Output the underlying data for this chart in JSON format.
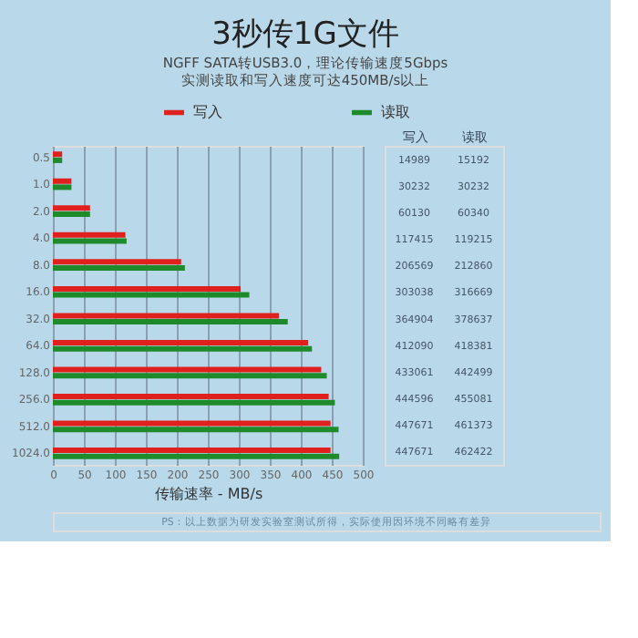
{
  "chart_data": {
    "type": "bar",
    "orientation": "horizontal",
    "title": "3秒传1G文件",
    "subtitle": "NGFF SATA转USB3.0，理论传输速度5Gbps\n实测读取和写入速度可达450MB/s以上",
    "categories": [
      "0.5",
      "1.0",
      "2.0",
      "4.0",
      "8.0",
      "16.0",
      "32.0",
      "64.0",
      "128.0",
      "256.0",
      "512.0",
      "1024.0"
    ],
    "series": [
      {
        "name": "写入",
        "color": "#e0201c",
        "values": [
          15,
          30,
          60,
          117,
          207,
          303,
          365,
          412,
          433,
          445,
          448,
          448
        ]
      },
      {
        "name": "读取",
        "color": "#1e8a2a",
        "values": [
          15,
          30,
          60,
          119,
          213,
          317,
          379,
          418,
          442,
          455,
          461,
          462
        ]
      }
    ],
    "xlim": [
      0,
      500
    ],
    "xticks": [
      0,
      50,
      100,
      150,
      200,
      250,
      300,
      350,
      400,
      450,
      500
    ],
    "xlabel": "传输速率 - MB/s",
    "grid": "x",
    "legend": "top",
    "annotations": [
      "写入",
      "读取",
      "14989",
      "15192",
      "30232",
      "30232",
      "60130",
      "60340",
      "117415",
      "119215",
      "206569",
      "212860",
      "303038",
      "316669",
      "364904",
      "378637",
      "412090",
      "418381",
      "433061",
      "442499",
      "444596",
      "455081",
      "447671",
      "461373",
      "447671",
      "462422",
      "PS：以上数据为研发实验室测试所得，实际使用因环境不同略有差异"
    ]
  }
}
